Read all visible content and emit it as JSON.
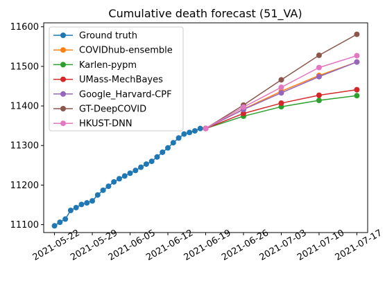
{
  "chart_data": {
    "type": "line",
    "title": "Cumulative death forecast (51_VA)",
    "xlabel": "",
    "ylabel": "",
    "x_ticks": [
      "2021-05-22",
      "2021-05-29",
      "2021-06-05",
      "2021-06-12",
      "2021-06-19",
      "2021-06-26",
      "2021-07-03",
      "2021-07-10",
      "2021-07-17"
    ],
    "y_ticks": [
      11100,
      11200,
      11300,
      11400,
      11500,
      11600
    ],
    "xlim": [
      "2021-05-20",
      "2021-07-19"
    ],
    "ylim": [
      11080,
      11610
    ],
    "grid": false,
    "legend_position": "top-left",
    "series": [
      {
        "name": "Ground truth",
        "color": "#1f77b4",
        "x": [
          "2021-05-22",
          "2021-05-23",
          "2021-05-24",
          "2021-05-25",
          "2021-05-26",
          "2021-05-27",
          "2021-05-28",
          "2021-05-29",
          "2021-05-30",
          "2021-05-31",
          "2021-06-01",
          "2021-06-02",
          "2021-06-03",
          "2021-06-04",
          "2021-06-05",
          "2021-06-06",
          "2021-06-07",
          "2021-06-08",
          "2021-06-09",
          "2021-06-10",
          "2021-06-11",
          "2021-06-12",
          "2021-06-13",
          "2021-06-14",
          "2021-06-15",
          "2021-06-16",
          "2021-06-17",
          "2021-06-18",
          "2021-06-19"
        ],
        "y": [
          11097,
          11106,
          11114,
          11136,
          11143,
          11151,
          11155,
          11160,
          11175,
          11187,
          11197,
          11208,
          11216,
          11223,
          11230,
          11237,
          11245,
          11253,
          11260,
          11271,
          11283,
          11294,
          11307,
          11319,
          11329,
          11333,
          11337,
          11343,
          11343
        ]
      },
      {
        "name": "COVIDhub-ensemble",
        "color": "#ff7f0e",
        "x": [
          "2021-06-19",
          "2021-06-26",
          "2021-07-03",
          "2021-07-10",
          "2021-07-17"
        ],
        "y": [
          11343,
          11392,
          11437,
          11477,
          11511
        ]
      },
      {
        "name": "Karlen-pypm",
        "color": "#2ca02c",
        "x": [
          "2021-06-19",
          "2021-06-26",
          "2021-07-03",
          "2021-07-10",
          "2021-07-17"
        ],
        "y": [
          11343,
          11374,
          11398,
          11414,
          11426
        ]
      },
      {
        "name": "UMass-MechBayes",
        "color": "#d62728",
        "x": [
          "2021-06-19",
          "2021-06-26",
          "2021-07-03",
          "2021-07-10",
          "2021-07-17"
        ],
        "y": [
          11343,
          11381,
          11407,
          11427,
          11441
        ]
      },
      {
        "name": "Google_Harvard-CPF",
        "color": "#9467bd",
        "x": [
          "2021-06-19",
          "2021-06-26",
          "2021-07-03",
          "2021-07-10",
          "2021-07-17"
        ],
        "y": [
          11343,
          11391,
          11433,
          11474,
          11511
        ]
      },
      {
        "name": "GT-DeepCOVID",
        "color": "#8c564b",
        "x": [
          "2021-06-19",
          "2021-06-26",
          "2021-07-03",
          "2021-07-10",
          "2021-07-17"
        ],
        "y": [
          11343,
          11402,
          11466,
          11528,
          11581
        ]
      },
      {
        "name": "HKUST-DNN",
        "color": "#e377c2",
        "x": [
          "2021-06-19",
          "2021-06-26",
          "2021-07-03",
          "2021-07-10",
          "2021-07-17"
        ],
        "y": [
          11343,
          11397,
          11447,
          11497,
          11527
        ]
      }
    ]
  }
}
